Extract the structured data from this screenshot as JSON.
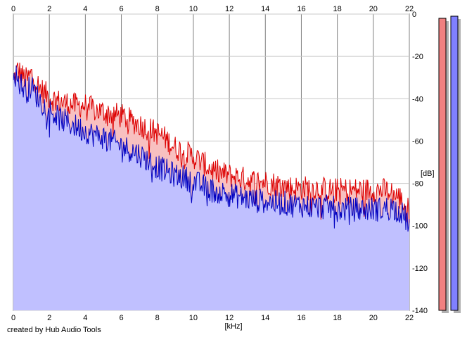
{
  "footer": {
    "credit": "created by Hub Audio Tools"
  },
  "colors": {
    "background": "#ffffff",
    "grid": "#c8c8c8",
    "major_grid": "#808080",
    "left_line": "#dd0000",
    "left_fill": "#f8c0c0",
    "right_line": "#0000c0",
    "right_fill": "#c0c0ff",
    "meter_left": "#f08080",
    "meter_right": "#8080ff"
  },
  "meters": [
    {
      "channel": "left",
      "level_db": -2
    },
    {
      "channel": "right",
      "level_db": -1
    }
  ],
  "chart_data": {
    "type": "area",
    "xlabel": "[kHz]",
    "ylabel": "[dB]",
    "xlim": [
      0,
      22
    ],
    "ylim": [
      -140,
      0
    ],
    "x_ticks": [
      "0",
      "2",
      "4",
      "6",
      "8",
      "10",
      "12",
      "14",
      "16",
      "18",
      "20",
      "22"
    ],
    "y_ticks": [
      "0",
      "-20",
      "-40",
      "-60",
      "-80",
      "-100",
      "-120",
      "-140"
    ],
    "grid": true,
    "x": [
      0,
      0.25,
      0.5,
      0.75,
      1,
      1.5,
      2,
      2.5,
      3,
      3.5,
      4,
      4.5,
      5,
      5.5,
      6,
      6.5,
      7,
      7.5,
      8,
      8.5,
      9,
      9.5,
      10,
      10.5,
      11,
      11.5,
      12,
      12.5,
      13,
      13.5,
      14,
      14.5,
      15,
      15.5,
      16,
      16.5,
      17,
      17.5,
      18,
      18.5,
      19,
      19.5,
      20,
      20.5,
      21,
      21.5,
      22
    ],
    "series": [
      {
        "values": [
          -30,
          -25,
          -28,
          -30,
          -27,
          -34,
          -38,
          -40,
          -41,
          -42,
          -42,
          -44,
          -45,
          -46,
          -47,
          -49,
          -51,
          -53,
          -55,
          -58,
          -62,
          -64,
          -66,
          -69,
          -72,
          -74,
          -75,
          -76,
          -77,
          -78,
          -78,
          -79,
          -80,
          -81,
          -81,
          -81,
          -81,
          -82,
          -82,
          -82,
          -82,
          -82,
          -82,
          -82,
          -83,
          -86,
          -92
        ]
      },
      {
        "values": [
          -25,
          -30,
          -33,
          -35,
          -33,
          -40,
          -44,
          -48,
          -50,
          -52,
          -54,
          -56,
          -57,
          -59,
          -61,
          -63,
          -65,
          -68,
          -71,
          -73,
          -75,
          -76,
          -78,
          -80,
          -82,
          -83,
          -84,
          -85,
          -86,
          -87,
          -87,
          -88,
          -88,
          -89,
          -89,
          -90,
          -90,
          -90,
          -91,
          -91,
          -91,
          -91,
          -91,
          -91,
          -90,
          -92,
          -98
        ]
      }
    ]
  }
}
